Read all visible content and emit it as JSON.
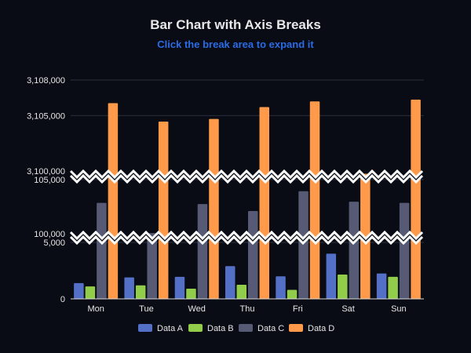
{
  "chart_data": {
    "type": "bar",
    "title": "Bar Chart with Axis Breaks",
    "subtitle": "Click the break area to expand it",
    "categories": [
      "Mon",
      "Tue",
      "Wed",
      "Thu",
      "Fri",
      "Sat",
      "Sun"
    ],
    "series": [
      {
        "name": "Data A",
        "color": "#5470c6",
        "values": [
          1400,
          1900,
          1950,
          2900,
          2000,
          4000,
          2250
        ]
      },
      {
        "name": "Data B",
        "color": "#91cc4a",
        "values": [
          1100,
          1200,
          900,
          1250,
          800,
          2150,
          1950
        ]
      },
      {
        "name": "Data C",
        "color": "#575a74",
        "values": [
          103000,
          100400,
          102900,
          102300,
          104000,
          103100,
          103000
        ]
      },
      {
        "name": "Data D",
        "color": "#ff9a4a",
        "values": [
          3106050,
          3104500,
          3104720,
          3105720,
          3106200,
          3100100,
          3106350
        ]
      }
    ],
    "y_ticks": [
      "0",
      "5,000",
      "100,000",
      "105,000",
      "3,100,000",
      "3,105,000",
      "3,108,000"
    ],
    "axis_breaks": [
      [
        5000,
        100000
      ],
      [
        105000,
        3100000
      ]
    ],
    "ylim": [
      0,
      3108000
    ],
    "grid": true,
    "legend_position": "bottom"
  }
}
